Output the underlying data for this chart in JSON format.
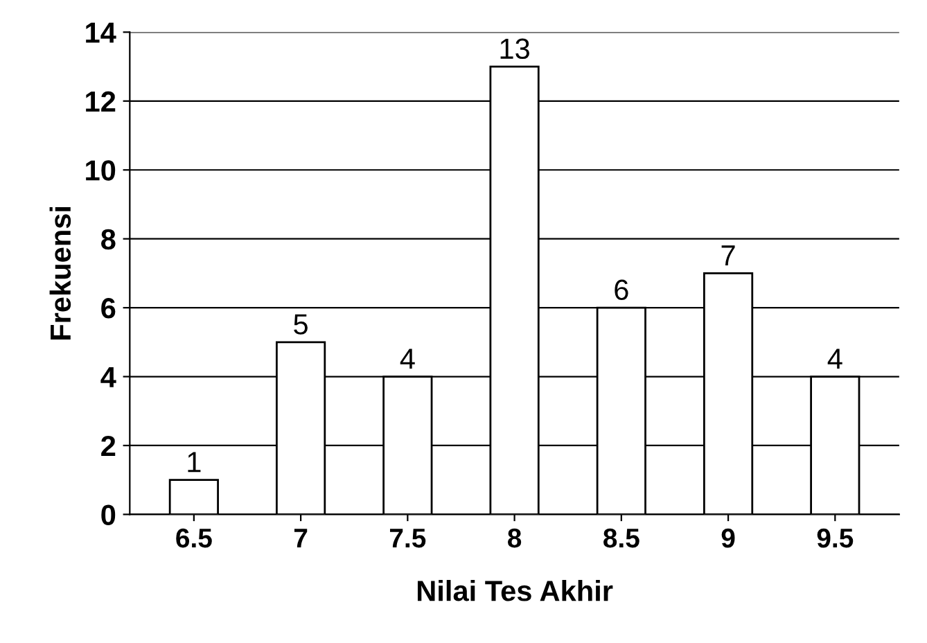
{
  "chart_data": {
    "type": "bar",
    "xlabel": "Nilai Tes Akhir",
    "ylabel": "Frekuensi",
    "categories": [
      "6.5",
      "7",
      "7.5",
      "8",
      "8.5",
      "9",
      "9.5"
    ],
    "values": [
      1,
      5,
      4,
      13,
      6,
      7,
      4
    ],
    "color": "#ffffff",
    "ylim": [
      0,
      14
    ],
    "yticks": [
      0,
      2,
      4,
      6,
      8,
      10,
      12,
      14
    ],
    "grid": "y",
    "data_labels": true
  }
}
